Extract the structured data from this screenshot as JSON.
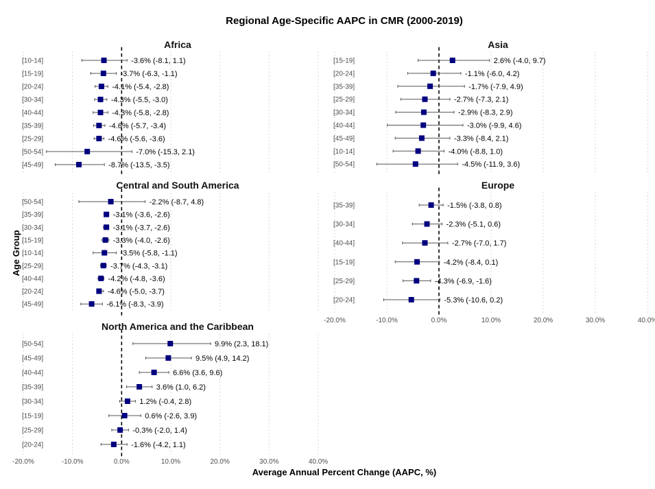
{
  "chart_data": {
    "type": "forest",
    "title": "Regional Age-Specific AAPC in CMR (2000-2019)",
    "xlabel": "Average Annual Percent Change (AAPC, %)",
    "ylabel": "Age Group",
    "xlim": [
      -20,
      40
    ],
    "xticks": [
      -20,
      -10,
      0,
      10,
      20,
      30,
      40
    ],
    "xtick_labels": [
      "-20.0%",
      "-10.0%",
      "0.0%",
      "10.0%",
      "20.0%",
      "30.0%",
      "40.0%"
    ],
    "reference_line": 0,
    "marker_color": "#000080",
    "panels": [
      {
        "name": "Africa",
        "rows": [
          {
            "group": "[10-14]",
            "est": -3.6,
            "lo": -8.1,
            "hi": 1.1,
            "label": "-3.6% (-8.1, 1.1)"
          },
          {
            "group": "[15-19]",
            "est": -3.7,
            "lo": -6.3,
            "hi": -1.1,
            "label": "-3.7% (-6.3, -1.1)"
          },
          {
            "group": "[20-24]",
            "est": -4.1,
            "lo": -5.4,
            "hi": -2.8,
            "label": "-4.1% (-5.4, -2.8)"
          },
          {
            "group": "[30-34]",
            "est": -4.3,
            "lo": -5.5,
            "hi": -3.0,
            "label": "-4.3% (-5.5, -3.0)"
          },
          {
            "group": "[40-44]",
            "est": -4.3,
            "lo": -5.8,
            "hi": -2.8,
            "label": "-4.3% (-5.8, -2.8)"
          },
          {
            "group": "[35-39]",
            "est": -4.6,
            "lo": -5.7,
            "hi": -3.4,
            "label": "-4.6% (-5.7, -3.4)"
          },
          {
            "group": "[25-29]",
            "est": -4.6,
            "lo": -5.6,
            "hi": -3.6,
            "label": "-4.6% (-5.6, -3.6)"
          },
          {
            "group": "[50-54]",
            "est": -7.0,
            "lo": -15.3,
            "hi": 2.1,
            "label": "-7.0% (-15.3, 2.1)"
          },
          {
            "group": "[45-49]",
            "est": -8.7,
            "lo": -13.5,
            "hi": -3.5,
            "label": "-8.7% (-13.5, -3.5)"
          }
        ]
      },
      {
        "name": "Asia",
        "rows": [
          {
            "group": "[15-19]",
            "est": 2.6,
            "lo": -4.0,
            "hi": 9.7,
            "label": "2.6% (-4.0, 9.7)"
          },
          {
            "group": "[20-24]",
            "est": -1.1,
            "lo": -6.0,
            "hi": 4.2,
            "label": "-1.1% (-6.0, 4.2)"
          },
          {
            "group": "[35-39]",
            "est": -1.7,
            "lo": -7.9,
            "hi": 4.9,
            "label": "-1.7% (-7.9, 4.9)"
          },
          {
            "group": "[25-29]",
            "est": -2.7,
            "lo": -7.3,
            "hi": 2.1,
            "label": "-2.7% (-7.3, 2.1)"
          },
          {
            "group": "[30-34]",
            "est": -2.9,
            "lo": -8.3,
            "hi": 2.9,
            "label": "-2.9% (-8.3, 2.9)"
          },
          {
            "group": "[40-44]",
            "est": -3.0,
            "lo": -9.9,
            "hi": 4.6,
            "label": "-3.0% (-9.9, 4.6)"
          },
          {
            "group": "[45-49]",
            "est": -3.3,
            "lo": -8.4,
            "hi": 2.1,
            "label": "-3.3% (-8.4, 2.1)"
          },
          {
            "group": "[10-14]",
            "est": -4.0,
            "lo": -8.8,
            "hi": 1.0,
            "label": "-4.0% (-8.8, 1.0)"
          },
          {
            "group": "[50-54]",
            "est": -4.5,
            "lo": -11.9,
            "hi": 3.6,
            "label": "-4.5% (-11.9, 3.6)"
          }
        ]
      },
      {
        "name": "Central and South America",
        "rows": [
          {
            "group": "[50-54]",
            "est": -2.2,
            "lo": -8.7,
            "hi": 4.8,
            "label": "-2.2% (-8.7, 4.8)"
          },
          {
            "group": "[35-39]",
            "est": -3.1,
            "lo": -3.6,
            "hi": -2.6,
            "label": "-3.1% (-3.6, -2.6)"
          },
          {
            "group": "[30-34]",
            "est": -3.1,
            "lo": -3.7,
            "hi": -2.6,
            "label": "-3.1% (-3.7, -2.6)"
          },
          {
            "group": "[15-19]",
            "est": -3.3,
            "lo": -4.0,
            "hi": -2.6,
            "label": "-3.3% (-4.0, -2.6)"
          },
          {
            "group": "[10-14]",
            "est": -3.5,
            "lo": -5.8,
            "hi": -1.1,
            "label": "-3.5% (-5.8, -1.1)"
          },
          {
            "group": "[25-29]",
            "est": -3.7,
            "lo": -4.3,
            "hi": -3.1,
            "label": "-3.7% (-4.3, -3.1)"
          },
          {
            "group": "[40-44]",
            "est": -4.2,
            "lo": -4.8,
            "hi": -3.6,
            "label": "-4.2% (-4.8, -3.6)"
          },
          {
            "group": "[20-24]",
            "est": -4.6,
            "lo": -5.0,
            "hi": -3.7,
            "label": "-4.6% (-5.0, -3.7)"
          },
          {
            "group": "[45-49]",
            "est": -6.1,
            "lo": -8.3,
            "hi": -3.9,
            "label": "-6.1% (-8.3, -3.9)"
          }
        ]
      },
      {
        "name": "Europe",
        "rows": [
          {
            "group": "[35-39]",
            "est": -1.5,
            "lo": -3.8,
            "hi": 0.8,
            "label": "-1.5% (-3.8, 0.8)"
          },
          {
            "group": "[30-34]",
            "est": -2.3,
            "lo": -5.1,
            "hi": 0.6,
            "label": "-2.3% (-5.1, 0.6)"
          },
          {
            "group": "[40-44]",
            "est": -2.7,
            "lo": -7.0,
            "hi": 1.7,
            "label": "-2.7% (-7.0, 1.7)"
          },
          {
            "group": "[15-19]",
            "est": -4.2,
            "lo": -8.4,
            "hi": 0.1,
            "label": "-4.2% (-8.4, 0.1)"
          },
          {
            "group": "[25-29]",
            "est": -4.3,
            "lo": -6.9,
            "hi": -1.6,
            "label": "-4.3% (-6.9, -1.6)"
          },
          {
            "group": "[20-24]",
            "est": -5.3,
            "lo": -10.6,
            "hi": 0.2,
            "label": "-5.3% (-10.6, 0.2)"
          }
        ]
      },
      {
        "name": "North America and the Caribbean",
        "rows": [
          {
            "group": "[50-54]",
            "est": 9.9,
            "lo": 2.3,
            "hi": 18.1,
            "label": "9.9% (2.3, 18.1)"
          },
          {
            "group": "[45-49]",
            "est": 9.5,
            "lo": 4.9,
            "hi": 14.2,
            "label": "9.5% (4.9, 14.2)"
          },
          {
            "group": "[40-44]",
            "est": 6.6,
            "lo": 3.6,
            "hi": 9.6,
            "label": "6.6% (3.6, 9.6)"
          },
          {
            "group": "[35-39]",
            "est": 3.6,
            "lo": 1.0,
            "hi": 6.2,
            "label": "3.6% (1.0, 6.2)"
          },
          {
            "group": "[30-34]",
            "est": 1.2,
            "lo": -0.4,
            "hi": 2.8,
            "label": "1.2% (-0.4, 2.8)"
          },
          {
            "group": "[15-19]",
            "est": 0.6,
            "lo": -2.6,
            "hi": 3.9,
            "label": "0.6% (-2.6, 3.9)"
          },
          {
            "group": "[25-29]",
            "est": -0.3,
            "lo": -2.0,
            "hi": 1.4,
            "label": "-0.3% (-2.0, 1.4)"
          },
          {
            "group": "[20-24]",
            "est": -1.6,
            "lo": -4.2,
            "hi": 1.1,
            "label": "-1.6% (-4.2, 1.1)"
          }
        ]
      }
    ]
  }
}
